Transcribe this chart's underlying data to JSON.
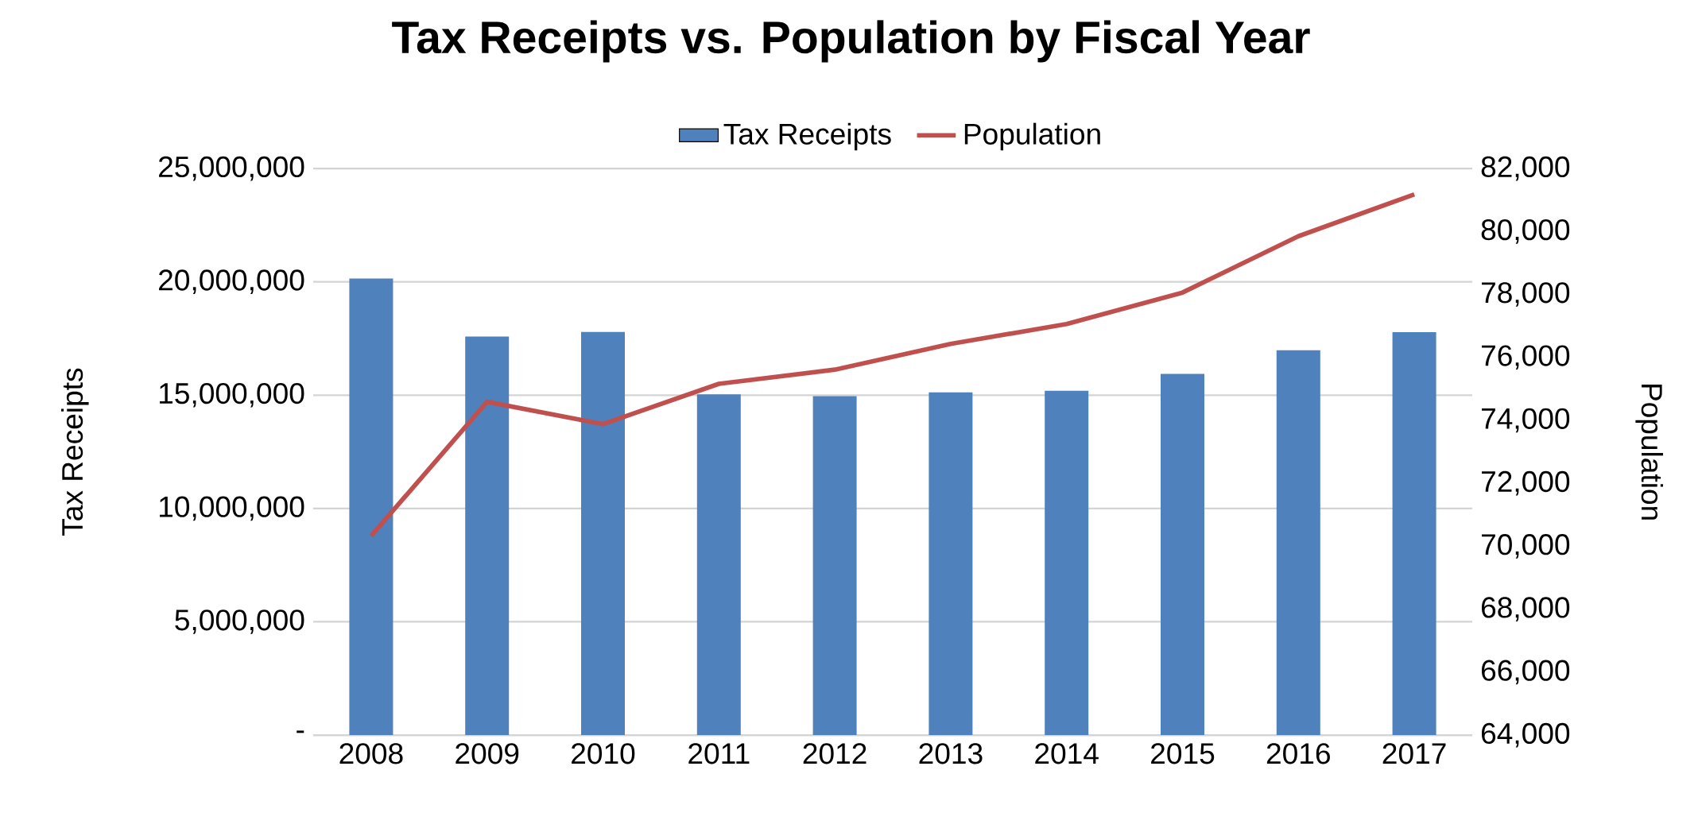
{
  "chart_data": {
    "type": "bar",
    "title": "Tax Receipts vs. Population by Fiscal Year",
    "categories": [
      "2008",
      "2009",
      "2010",
      "2011",
      "2012",
      "2013",
      "2014",
      "2015",
      "2016",
      "2017"
    ],
    "series": [
      {
        "name": "Tax Receipts",
        "color": "#4f81bd",
        "values": [
          20150000,
          17590000,
          17790000,
          15040000,
          14960000,
          15120000,
          15190000,
          15940000,
          16980000,
          17780000
        ]
      },
      {
        "name": "Population",
        "type": "line",
        "axis": "y2",
        "color": "#c0504d",
        "values": [
          70330,
          74590,
          73880,
          75160,
          75610,
          76430,
          77060,
          78060,
          79850,
          81180
        ]
      }
    ],
    "ylabel": "Tax Receipts",
    "y2label": "Population",
    "ylim": [
      0,
      25000000
    ],
    "yticks": [
      {
        "value": 0,
        "label": "-"
      },
      {
        "value": 5000000,
        "label": "5,000,000"
      },
      {
        "value": 10000000,
        "label": "10,000,000"
      },
      {
        "value": 15000000,
        "label": "15,000,000"
      },
      {
        "value": 20000000,
        "label": "20,000,000"
      },
      {
        "value": 25000000,
        "label": "25,000,000"
      }
    ],
    "y2lim": [
      64000,
      82000
    ],
    "y2ticks": [
      {
        "value": 64000,
        "label": "64,000"
      },
      {
        "value": 66000,
        "label": "66,000"
      },
      {
        "value": 68000,
        "label": "68,000"
      },
      {
        "value": 70000,
        "label": "70,000"
      },
      {
        "value": 72000,
        "label": "72,000"
      },
      {
        "value": 74000,
        "label": "74,000"
      },
      {
        "value": 76000,
        "label": "76,000"
      },
      {
        "value": 78000,
        "label": "78,000"
      },
      {
        "value": 80000,
        "label": "80,000"
      },
      {
        "value": 82000,
        "label": "82,000"
      }
    ],
    "grid": "y",
    "legend": "top",
    "marker": "none",
    "line_style": "solid"
  }
}
